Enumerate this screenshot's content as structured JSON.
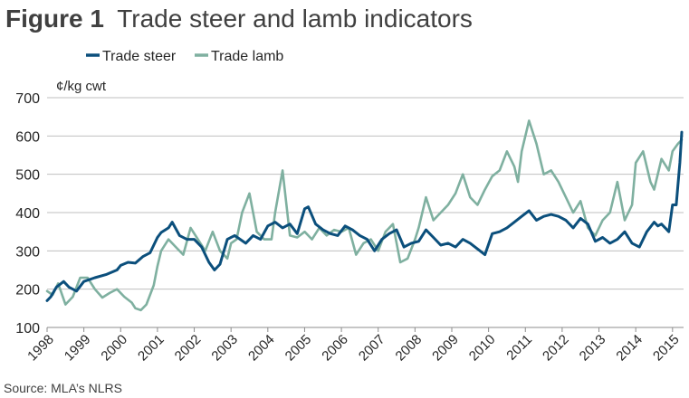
{
  "figure": {
    "label": "Figure 1",
    "title": "Trade steer and lamb indicators",
    "source": "Source: MLA’s NLRS"
  },
  "chart_data": {
    "type": "line",
    "ylabel": "¢/kg cwt",
    "ylim": [
      100,
      700
    ],
    "yticks": [
      100,
      200,
      300,
      400,
      500,
      600,
      700
    ],
    "xlim": [
      1998,
      2015.3
    ],
    "xticks": [
      "1998",
      "1999",
      "2000",
      "2001",
      "2002",
      "2003",
      "2004",
      "2005",
      "2006",
      "2007",
      "2008",
      "2009",
      "2010",
      "2011",
      "2012",
      "2013",
      "2014",
      "2015"
    ],
    "grid": "horizontal",
    "legend": "top-left",
    "series": [
      {
        "name": "Trade steer",
        "color": "#0b4f7c",
        "x": [
          1998.0,
          1998.1,
          1998.25,
          1998.45,
          1998.6,
          1998.8,
          1999.0,
          1999.3,
          1999.6,
          1999.9,
          2000.0,
          2000.2,
          2000.4,
          2000.6,
          2000.8,
          2001.0,
          2001.1,
          2001.3,
          2001.4,
          2001.6,
          2001.8,
          2002.0,
          2002.2,
          2002.4,
          2002.55,
          2002.7,
          2002.9,
          2003.1,
          2003.4,
          2003.6,
          2003.8,
          2004.0,
          2004.2,
          2004.4,
          2004.6,
          2004.8,
          2005.0,
          2005.1,
          2005.3,
          2005.5,
          2005.7,
          2005.9,
          2006.1,
          2006.3,
          2006.5,
          2006.7,
          2006.9,
          2007.1,
          2007.3,
          2007.5,
          2007.7,
          2007.9,
          2008.1,
          2008.3,
          2008.5,
          2008.7,
          2008.9,
          2009.1,
          2009.3,
          2009.5,
          2009.7,
          2009.9,
          2010.1,
          2010.3,
          2010.5,
          2010.7,
          2010.9,
          2011.1,
          2011.3,
          2011.5,
          2011.7,
          2011.9,
          2012.1,
          2012.3,
          2012.5,
          2012.7,
          2012.9,
          2013.1,
          2013.3,
          2013.5,
          2013.7,
          2013.9,
          2014.1,
          2014.3,
          2014.5,
          2014.6,
          2014.7,
          2014.8,
          2014.9,
          2015.0,
          2015.1,
          2015.2,
          2015.25
        ],
        "values": [
          170,
          180,
          205,
          220,
          205,
          195,
          220,
          230,
          238,
          250,
          262,
          270,
          268,
          285,
          295,
          335,
          348,
          360,
          375,
          340,
          330,
          330,
          310,
          270,
          250,
          265,
          330,
          340,
          320,
          340,
          330,
          365,
          375,
          360,
          370,
          345,
          410,
          415,
          370,
          355,
          345,
          340,
          365,
          355,
          340,
          330,
          300,
          330,
          345,
          355,
          310,
          320,
          325,
          355,
          335,
          315,
          320,
          310,
          330,
          320,
          305,
          290,
          345,
          350,
          360,
          375,
          390,
          405,
          380,
          390,
          395,
          390,
          380,
          360,
          385,
          370,
          325,
          335,
          320,
          330,
          350,
          320,
          310,
          350,
          375,
          365,
          370,
          360,
          350,
          420,
          420,
          530,
          610
        ]
      },
      {
        "name": "Trade lamb",
        "color": "#7fb0a0",
        "x": [
          1998.0,
          1998.15,
          1998.3,
          1998.5,
          1998.7,
          1998.9,
          1999.1,
          1999.3,
          1999.5,
          1999.7,
          1999.9,
          2000.1,
          2000.3,
          2000.4,
          2000.55,
          2000.7,
          2000.9,
          2001.0,
          2001.1,
          2001.3,
          2001.5,
          2001.7,
          2001.9,
          2002.1,
          2002.3,
          2002.5,
          2002.7,
          2002.9,
          2003.0,
          2003.15,
          2003.3,
          2003.5,
          2003.7,
          2003.9,
          2004.1,
          2004.2,
          2004.4,
          2004.6,
          2004.8,
          2005.0,
          2005.2,
          2005.4,
          2005.6,
          2005.8,
          2006.0,
          2006.2,
          2006.4,
          2006.6,
          2006.8,
          2007.0,
          2007.2,
          2007.4,
          2007.6,
          2007.8,
          2008.0,
          2008.1,
          2008.3,
          2008.5,
          2008.7,
          2008.9,
          2009.1,
          2009.3,
          2009.5,
          2009.7,
          2009.9,
          2010.1,
          2010.3,
          2010.5,
          2010.7,
          2010.8,
          2010.9,
          2011.1,
          2011.3,
          2011.5,
          2011.7,
          2011.9,
          2012.1,
          2012.3,
          2012.5,
          2012.7,
          2012.9,
          2013.1,
          2013.3,
          2013.5,
          2013.7,
          2013.9,
          2014.0,
          2014.2,
          2014.4,
          2014.5,
          2014.7,
          2014.9,
          2015.0,
          2015.15,
          2015.25
        ],
        "values": [
          195,
          185,
          215,
          160,
          180,
          230,
          230,
          200,
          178,
          190,
          200,
          180,
          165,
          150,
          145,
          160,
          210,
          260,
          300,
          330,
          310,
          290,
          360,
          330,
          300,
          350,
          300,
          280,
          320,
          330,
          400,
          450,
          350,
          330,
          330,
          400,
          510,
          340,
          335,
          350,
          330,
          360,
          340,
          355,
          350,
          360,
          290,
          320,
          330,
          300,
          350,
          370,
          270,
          280,
          330,
          360,
          440,
          380,
          400,
          420,
          450,
          500,
          440,
          420,
          460,
          495,
          510,
          560,
          520,
          480,
          560,
          640,
          580,
          500,
          510,
          480,
          440,
          400,
          430,
          360,
          340,
          380,
          400,
          480,
          380,
          420,
          530,
          560,
          480,
          460,
          540,
          510,
          560,
          580,
          590
        ]
      }
    ]
  }
}
